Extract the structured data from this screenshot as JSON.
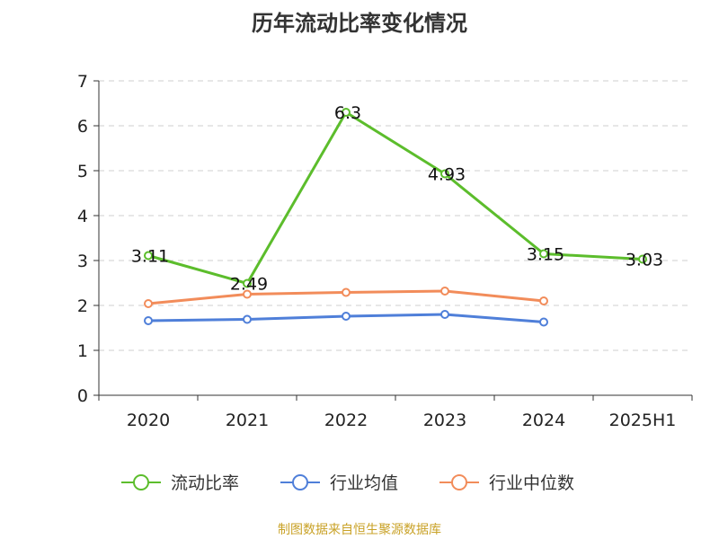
{
  "chart_data": {
    "type": "line",
    "title": "历年流动比率变化情况",
    "categories": [
      "2020",
      "2021",
      "2022",
      "2023",
      "2024",
      "2025H1"
    ],
    "ylim": [
      0,
      7
    ],
    "yticks": [
      0,
      1,
      2,
      3,
      4,
      5,
      6,
      7
    ],
    "grid": true,
    "legend_position": "bottom",
    "series": [
      {
        "name": "流动比率",
        "color": "#5cbd2c",
        "values": [
          3.11,
          2.49,
          6.3,
          4.93,
          3.15,
          3.03
        ],
        "labels": [
          "3.11",
          "2.49",
          "6.3",
          "4.93",
          "3.15",
          "3.03"
        ],
        "show_labels": true
      },
      {
        "name": "行业均值",
        "color": "#4f7fd9",
        "values": [
          1.66,
          1.69,
          1.76,
          1.8,
          1.63,
          null
        ],
        "show_labels": false
      },
      {
        "name": "行业中位数",
        "color": "#f28c5a",
        "values": [
          2.04,
          2.25,
          2.29,
          2.32,
          2.1,
          null
        ],
        "show_labels": false
      }
    ]
  },
  "source_text": "制图数据来自恒生聚源数据库"
}
